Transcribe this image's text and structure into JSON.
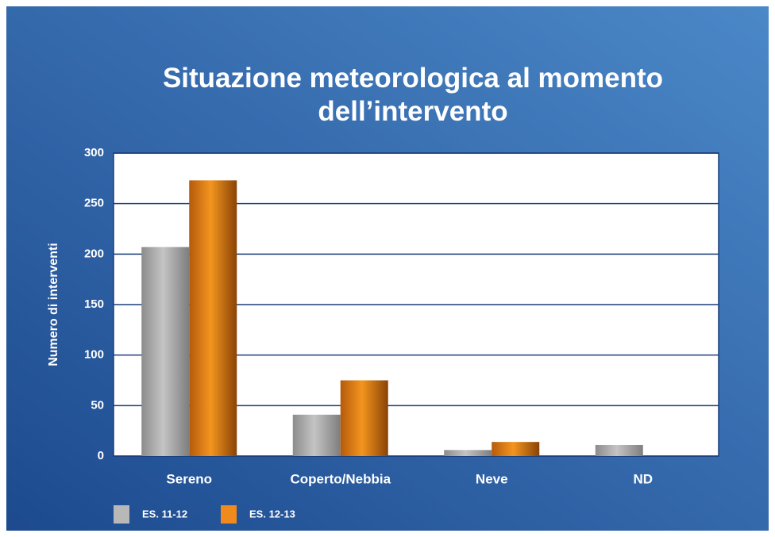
{
  "chart_data": {
    "type": "bar",
    "title": "Situazione meteorologica al momento dell’intervento",
    "y_label": "Numero di interventi",
    "categories": [
      "Sereno",
      "Coperto/Nebbia",
      "Neve",
      "ND"
    ],
    "series": [
      {
        "name": "ES. 11-12",
        "color": "#a9a9a9",
        "values": [
          207,
          41,
          6,
          11
        ]
      },
      {
        "name": "ES. 12-13",
        "color": "#f08a1c",
        "values": [
          273,
          75,
          14,
          0
        ]
      }
    ],
    "ylim": [
      0,
      300
    ],
    "yticks": [
      0,
      50,
      100,
      150,
      200,
      250,
      300
    ],
    "grid": true,
    "legend": "bottom-left"
  }
}
